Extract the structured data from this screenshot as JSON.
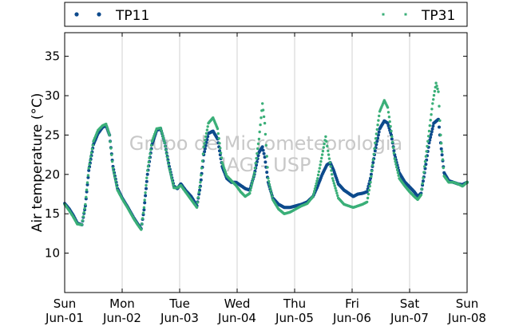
{
  "chart_data": {
    "type": "scatter",
    "ylabel": "Air temperature (°C)",
    "xlim": [
      0,
      7
    ],
    "ylim": [
      5,
      38
    ],
    "yticks": [
      10,
      15,
      20,
      25,
      30,
      35
    ],
    "xticks": [
      {
        "x": 0,
        "day": "Sun",
        "date": "Jun-01"
      },
      {
        "x": 1,
        "day": "Mon",
        "date": "Jun-02"
      },
      {
        "x": 2,
        "day": "Tue",
        "date": "Jun-03"
      },
      {
        "x": 3,
        "day": "Wed",
        "date": "Jun-04"
      },
      {
        "x": 4,
        "day": "Thu",
        "date": "Jun-05"
      },
      {
        "x": 5,
        "day": "Fri",
        "date": "Jun-06"
      },
      {
        "x": 6,
        "day": "Sat",
        "date": "Jun-07"
      },
      {
        "x": 7,
        "day": "Sun",
        "date": "Jun-08"
      }
    ],
    "grid": "vertical",
    "legend_position": "top",
    "watermark": [
      "Grupo de Micrometeorologia",
      "IAG - USP"
    ],
    "series": [
      {
        "name": "TP11",
        "color": "#0d4a8c",
        "points": [
          [
            0.0,
            16.3
          ],
          [
            0.08,
            15.6
          ],
          [
            0.15,
            14.8
          ],
          [
            0.22,
            13.8
          ],
          [
            0.3,
            13.6
          ],
          [
            0.36,
            16.0
          ],
          [
            0.42,
            20.5
          ],
          [
            0.5,
            23.8
          ],
          [
            0.58,
            25.2
          ],
          [
            0.66,
            26.0
          ],
          [
            0.72,
            26.2
          ],
          [
            0.78,
            25.0
          ],
          [
            0.84,
            21.0
          ],
          [
            0.92,
            18.2
          ],
          [
            1.0,
            17.0
          ],
          [
            1.1,
            15.8
          ],
          [
            1.2,
            14.5
          ],
          [
            1.28,
            13.6
          ],
          [
            1.33,
            13.1
          ],
          [
            1.38,
            15.5
          ],
          [
            1.44,
            20.0
          ],
          [
            1.52,
            23.8
          ],
          [
            1.6,
            25.6
          ],
          [
            1.67,
            25.8
          ],
          [
            1.74,
            24.0
          ],
          [
            1.82,
            21.0
          ],
          [
            1.9,
            18.5
          ],
          [
            1.96,
            18.2
          ],
          [
            2.02,
            18.8
          ],
          [
            2.1,
            18.0
          ],
          [
            2.2,
            17.2
          ],
          [
            2.3,
            16.0
          ],
          [
            2.36,
            18.5
          ],
          [
            2.42,
            22.5
          ],
          [
            2.5,
            25.2
          ],
          [
            2.58,
            25.5
          ],
          [
            2.66,
            24.5
          ],
          [
            2.74,
            21.0
          ],
          [
            2.82,
            19.5
          ],
          [
            2.9,
            19.0
          ],
          [
            2.98,
            19.0
          ],
          [
            3.06,
            18.6
          ],
          [
            3.14,
            18.2
          ],
          [
            3.22,
            18.0
          ],
          [
            3.3,
            20.0
          ],
          [
            3.38,
            22.8
          ],
          [
            3.44,
            23.5
          ],
          [
            3.48,
            22.2
          ],
          [
            3.54,
            19.0
          ],
          [
            3.62,
            17.0
          ],
          [
            3.72,
            16.2
          ],
          [
            3.82,
            15.8
          ],
          [
            3.92,
            15.8
          ],
          [
            4.02,
            16.0
          ],
          [
            4.12,
            16.2
          ],
          [
            4.22,
            16.5
          ],
          [
            4.32,
            17.2
          ],
          [
            4.4,
            18.5
          ],
          [
            4.48,
            20.0
          ],
          [
            4.56,
            21.2
          ],
          [
            4.62,
            21.5
          ],
          [
            4.68,
            20.5
          ],
          [
            4.76,
            18.8
          ],
          [
            4.86,
            18.0
          ],
          [
            4.94,
            17.6
          ],
          [
            5.02,
            17.2
          ],
          [
            5.1,
            17.5
          ],
          [
            5.18,
            17.6
          ],
          [
            5.26,
            17.8
          ],
          [
            5.32,
            19.5
          ],
          [
            5.4,
            23.0
          ],
          [
            5.48,
            25.8
          ],
          [
            5.56,
            26.8
          ],
          [
            5.62,
            26.5
          ],
          [
            5.68,
            25.0
          ],
          [
            5.74,
            22.5
          ],
          [
            5.82,
            20.2
          ],
          [
            5.92,
            19.0
          ],
          [
            6.0,
            18.4
          ],
          [
            6.08,
            17.8
          ],
          [
            6.14,
            17.2
          ],
          [
            6.2,
            17.6
          ],
          [
            6.26,
            20.2
          ],
          [
            6.34,
            24.0
          ],
          [
            6.42,
            26.5
          ],
          [
            6.5,
            27.0
          ],
          [
            6.54,
            24.0
          ],
          [
            6.6,
            20.2
          ],
          [
            6.68,
            19.2
          ],
          [
            6.76,
            19.0
          ],
          [
            6.84,
            18.8
          ],
          [
            6.92,
            18.7
          ],
          [
            7.0,
            19.0
          ]
        ]
      },
      {
        "name": "TP31",
        "color": "#3aaf78",
        "points": [
          [
            0.0,
            16.2
          ],
          [
            0.08,
            15.4
          ],
          [
            0.15,
            14.6
          ],
          [
            0.22,
            13.7
          ],
          [
            0.3,
            13.6
          ],
          [
            0.36,
            16.2
          ],
          [
            0.42,
            20.8
          ],
          [
            0.5,
            24.2
          ],
          [
            0.58,
            25.6
          ],
          [
            0.66,
            26.2
          ],
          [
            0.72,
            26.4
          ],
          [
            0.78,
            25.0
          ],
          [
            0.84,
            20.8
          ],
          [
            0.92,
            18.0
          ],
          [
            1.0,
            16.9
          ],
          [
            1.1,
            15.7
          ],
          [
            1.2,
            14.4
          ],
          [
            1.28,
            13.5
          ],
          [
            1.33,
            13.0
          ],
          [
            1.38,
            15.8
          ],
          [
            1.44,
            20.5
          ],
          [
            1.52,
            24.2
          ],
          [
            1.6,
            25.8
          ],
          [
            1.67,
            25.9
          ],
          [
            1.74,
            24.0
          ],
          [
            1.82,
            20.8
          ],
          [
            1.9,
            18.3
          ],
          [
            1.96,
            18.3
          ],
          [
            2.02,
            18.6
          ],
          [
            2.1,
            17.8
          ],
          [
            2.2,
            16.8
          ],
          [
            2.3,
            15.8
          ],
          [
            2.36,
            19.0
          ],
          [
            2.42,
            23.5
          ],
          [
            2.5,
            26.5
          ],
          [
            2.58,
            27.2
          ],
          [
            2.66,
            25.8
          ],
          [
            2.74,
            21.5
          ],
          [
            2.82,
            19.8
          ],
          [
            2.9,
            19.2
          ],
          [
            2.98,
            18.6
          ],
          [
            3.06,
            17.8
          ],
          [
            3.14,
            17.2
          ],
          [
            3.22,
            17.6
          ],
          [
            3.3,
            20.2
          ],
          [
            3.38,
            24.5
          ],
          [
            3.44,
            29.0
          ],
          [
            3.48,
            26.5
          ],
          [
            3.54,
            19.5
          ],
          [
            3.62,
            16.8
          ],
          [
            3.72,
            15.6
          ],
          [
            3.82,
            15.0
          ],
          [
            3.92,
            15.2
          ],
          [
            4.02,
            15.6
          ],
          [
            4.12,
            16.0
          ],
          [
            4.22,
            16.3
          ],
          [
            4.32,
            17.2
          ],
          [
            4.4,
            19.5
          ],
          [
            4.48,
            22.5
          ],
          [
            4.54,
            24.8
          ],
          [
            4.58,
            23.0
          ],
          [
            4.66,
            19.5
          ],
          [
            4.76,
            17.0
          ],
          [
            4.86,
            16.2
          ],
          [
            4.94,
            16.0
          ],
          [
            5.02,
            15.8
          ],
          [
            5.1,
            16.0
          ],
          [
            5.18,
            16.2
          ],
          [
            5.26,
            16.5
          ],
          [
            5.32,
            19.0
          ],
          [
            5.4,
            24.0
          ],
          [
            5.48,
            28.0
          ],
          [
            5.56,
            29.4
          ],
          [
            5.62,
            28.5
          ],
          [
            5.68,
            25.5
          ],
          [
            5.74,
            22.0
          ],
          [
            5.82,
            19.5
          ],
          [
            5.92,
            18.5
          ],
          [
            6.0,
            17.8
          ],
          [
            6.08,
            17.2
          ],
          [
            6.14,
            16.8
          ],
          [
            6.2,
            17.4
          ],
          [
            6.26,
            21.0
          ],
          [
            6.34,
            25.5
          ],
          [
            6.4,
            29.0
          ],
          [
            6.46,
            31.6
          ],
          [
            6.5,
            30.5
          ],
          [
            6.54,
            25.0
          ],
          [
            6.6,
            19.8
          ],
          [
            6.68,
            19.0
          ],
          [
            6.76,
            19.0
          ],
          [
            6.84,
            18.8
          ],
          [
            6.92,
            18.5
          ],
          [
            7.0,
            19.0
          ]
        ]
      }
    ]
  }
}
